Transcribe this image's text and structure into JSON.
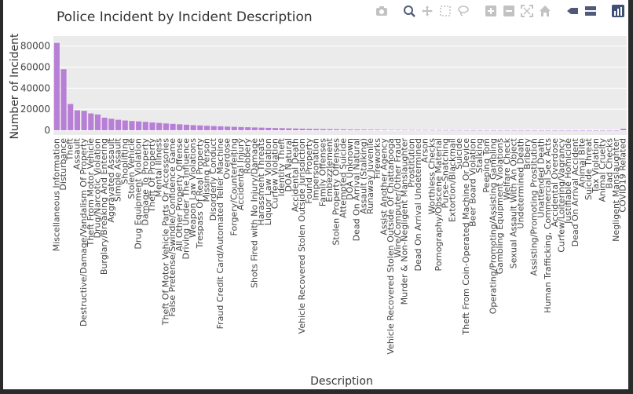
{
  "colors": {
    "bar": "#b87fd6",
    "plot_bg": "#ebebeb",
    "grid": "#ffffff",
    "text": "#333333",
    "icon": "#c2c2c2",
    "icon_active": "#505a78"
  },
  "modebar": [
    {
      "name": "camera-icon",
      "title": "Download plot as a png"
    },
    {
      "name": "zoom-icon",
      "title": "Zoom"
    },
    {
      "name": "pan-icon",
      "title": "Pan"
    },
    {
      "name": "box-select-icon",
      "title": "Box Select"
    },
    {
      "name": "lasso-select-icon",
      "title": "Lasso Select"
    },
    {
      "name": "zoom-in-icon",
      "title": "Zoom in"
    },
    {
      "name": "zoom-out-icon",
      "title": "Zoom out"
    },
    {
      "name": "autoscale-icon",
      "title": "Autoscale"
    },
    {
      "name": "reset-axes-icon",
      "title": "Reset axes"
    },
    {
      "name": "spike-lines-icon",
      "title": "Toggle Spike Lines"
    },
    {
      "name": "hover-compare-icon",
      "title": "Show closest data on hover"
    },
    {
      "name": "plotly-logo-icon",
      "title": "Produced with Plotly"
    }
  ],
  "chart_data": {
    "type": "bar",
    "title": "Police Incident by Incident Description",
    "xlabel": "Description",
    "ylabel": "Number of Incident",
    "ylim": [
      0,
      88000
    ],
    "yticks": [
      0,
      20000,
      40000,
      60000,
      80000
    ],
    "ytick_labels": [
      "0",
      "20000",
      "40000",
      "60000",
      "80000"
    ],
    "grid": true,
    "categories": [
      "Miscellaneous Information",
      "Disturbance",
      "Theft",
      "Assault",
      "Destructive/Damage/Vandalism Of Property",
      "Theft From Motor Vehicle",
      "Drug/Narcotic Violation",
      "Burglary/Breaking And Entering",
      "Aggravated Assault",
      "Simple Assault",
      "Shoplifting",
      "Stolen Vehicle",
      "Drug Equipment Violation",
      "Damage To Property",
      "Theft Of Property",
      "Mental Illness",
      "Theft Of Motor Vehicle Parts Or Accessories",
      "False Pretense/Swindle/Confidence Game",
      "All Other Property Offense",
      "Driving Under The Influence",
      "Weapon Law Violations",
      "Trespass Of Real Property",
      "Missing Person",
      "Disorderly Conduct",
      "Fraud Credit Card/Automated Teller Machine",
      "Overdose",
      "Forgery/Counterfeiting",
      "Accidental Injury",
      "Robbery",
      "Shots Fired with No Injury/Damage",
      "Harassment Threats",
      "Liquor Law Violation",
      "Curfew Violation",
      "Identity Theft",
      "DOA Natural",
      "Accidental Death",
      "Vehicle Recovered Stolen Outside Jurisdiction",
      "Found Property",
      "Impersonation",
      "Family Offenses",
      "Embezzlement",
      "Stolen Property Offenses",
      "Attempted Suicide",
      "DOA Unknown",
      "Dead On Arrival Natural",
      "Assault (Stalking)",
      "Runaway Juvenile",
      "Fireworks",
      "Assist Another Agency",
      "Vehicle Recovered Stolen Outside Of Chattanooga",
      "Wire/Computer/Other Fraud",
      "Murder & Non-Negligent Manslaughter",
      "Prostitution",
      "Dead On Arrival Undetermined",
      "Arson",
      "Worthless Checks",
      "Pornography/Obscene Material",
      "Purse-Snatching",
      "Extortion/Blackmail",
      "Suicide",
      "Theft From Coin-Operated Machine Or Device",
      "Beer Board Violation",
      "Stalking",
      "Peeping Tom",
      "Operating/Promoting/Assisting Gambling",
      "Gambling Equipment Violations",
      "Welfare Check",
      "Sexual Assault With An Object",
      "Undetermined Death",
      "Bribery",
      "Assisting/Promoting Prostitution",
      "Unattended Death",
      "Human Trafficking, Commercial Sex Acts",
      "Accidental Overdose",
      "Curfew/Loitering/Vagrancy",
      "Justifiable Homicide",
      "Dead On Arrival Accident",
      "Animal Bite",
      "Suicide Threat",
      "Tax Violation",
      "Animal Cruelty",
      "Bad Checks",
      "Negligent Manslaughter",
      "COVID19 Related"
    ],
    "values": [
      83000,
      58000,
      25000,
      19000,
      18500,
      16000,
      15000,
      12000,
      11000,
      10000,
      9300,
      8800,
      8400,
      8000,
      7400,
      7000,
      6500,
      6100,
      5700,
      5300,
      4900,
      4600,
      4300,
      4000,
      3800,
      3500,
      3300,
      3100,
      2900,
      2700,
      2500,
      2300,
      2150,
      2000,
      1850,
      1700,
      1550,
      1400,
      1300,
      1200,
      1100,
      1000,
      900,
      820,
      750,
      680,
      620,
      560,
      500,
      450,
      400,
      360,
      320,
      280,
      250,
      220,
      200,
      180,
      160,
      140,
      125,
      110,
      100,
      90,
      80,
      70,
      60,
      55,
      50,
      45,
      40,
      35,
      30,
      28,
      25,
      22,
      20,
      18,
      15,
      12,
      10,
      8,
      6,
      1500
    ]
  }
}
